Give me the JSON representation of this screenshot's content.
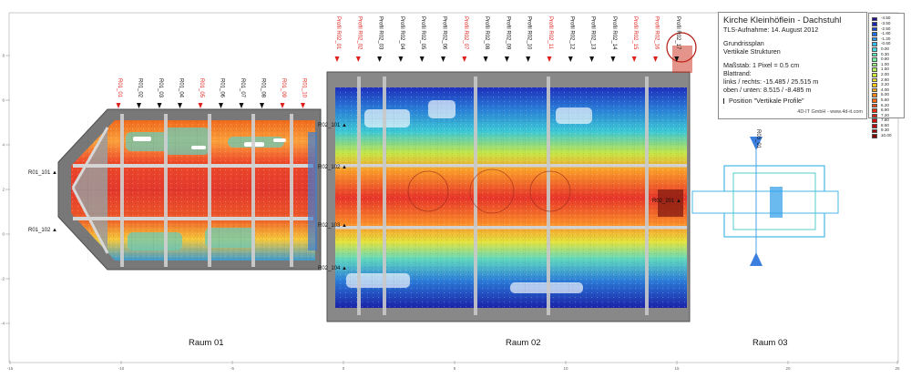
{
  "title_block": {
    "title": "Kirche Kleinhöflein - Dachstuhl",
    "scan_date": "TLS-Aufnahme: 14. August 2012",
    "plan_type": "Grundrissplan",
    "subtitle": "Vertikale Strukturen",
    "scale": "Maßstab: 1 Pixel = 0.5 cm",
    "margin_heading": "Blattrand:",
    "margin_lr": "links / rechts: -15.485 / 25.515 m",
    "margin_tb": "oben / unten: 8.515 / -8.485 m",
    "profile_legend": "Position \"Vertikale Profile\"",
    "credit": "4D-IT GmbH - www.4d-it.com"
  },
  "legend": {
    "values": [
      "-4.50",
      "-3.50",
      "-2.50",
      "-1.80",
      "-1.20",
      "-0.60",
      "0.00",
      "0.30",
      "0.60",
      "1.00",
      "1.50",
      "2.00",
      "2.60",
      "3.20",
      "4.00",
      "5.00",
      "5.60",
      "6.20",
      "6.90",
      "7.20",
      "7.80",
      "8.50",
      "9.30",
      "10.00"
    ],
    "colors": [
      "#1c0f8c",
      "#1b25b8",
      "#1c45dd",
      "#1f6ff0",
      "#2898f5",
      "#36bdf0",
      "#49d8e0",
      "#5ce8c4",
      "#74f0a0",
      "#92f27a",
      "#b2ef55",
      "#d2e93a",
      "#ecde2a",
      "#fbc51f",
      "#fda51a",
      "#fc8517",
      "#f86614",
      "#f14a12",
      "#e83010",
      "#dd1f10",
      "#cc120f",
      "#b60a0c",
      "#9a060a",
      "#7a0208"
    ],
    "no_data_color": "#ffffff"
  },
  "rooms": [
    {
      "label": "Raum 01"
    },
    {
      "label": "Raum 02"
    },
    {
      "label": "Raum 03"
    }
  ],
  "profiles_r01": {
    "labels": [
      "R01_01",
      "R01_02",
      "R01_03",
      "R01_04",
      "R01_05",
      "R01_06",
      "R01_07",
      "R01_08",
      "R01_09",
      "R01_10"
    ],
    "highlighted": [
      "R01_01",
      "R01_05",
      "R01_09",
      "R01_10"
    ]
  },
  "profiles_r02": {
    "labels": [
      "Profil R02_01",
      "Profil R02_02",
      "Profil R02_03",
      "Profil R02_04",
      "Profil R02_05",
      "Profil R02_06",
      "Profil R02_07",
      "Profil R02_08",
      "Profil R02_09",
      "Profil R02_10",
      "Profil R02_11",
      "Profil R02_12",
      "Profil R02_13",
      "Profil R02_14",
      "Profil R02_15",
      "Profil R02_16",
      "Profil R02_17"
    ],
    "highlighted": [
      "Profil R02_01",
      "Profil R02_02",
      "Profil R02_07",
      "Profil R02_11",
      "Profil R02_15",
      "Profil R02_16"
    ]
  },
  "side_profiles": [
    "R01_101",
    "R01_102",
    "R02_101",
    "R02_102",
    "R02_103",
    "R02_104",
    "R02_201",
    "R03_01"
  ],
  "axis": {
    "bottom_ticks": [
      "-15",
      "-10",
      "-5",
      "0",
      "5",
      "10",
      "15",
      "20",
      "25"
    ],
    "left_ticks": [
      "8",
      "6",
      "4",
      "2",
      "0",
      "-2",
      "-4",
      "-6",
      "-8"
    ]
  },
  "label_colors": {
    "highlight": "#e0201a",
    "normal": "#111111"
  }
}
